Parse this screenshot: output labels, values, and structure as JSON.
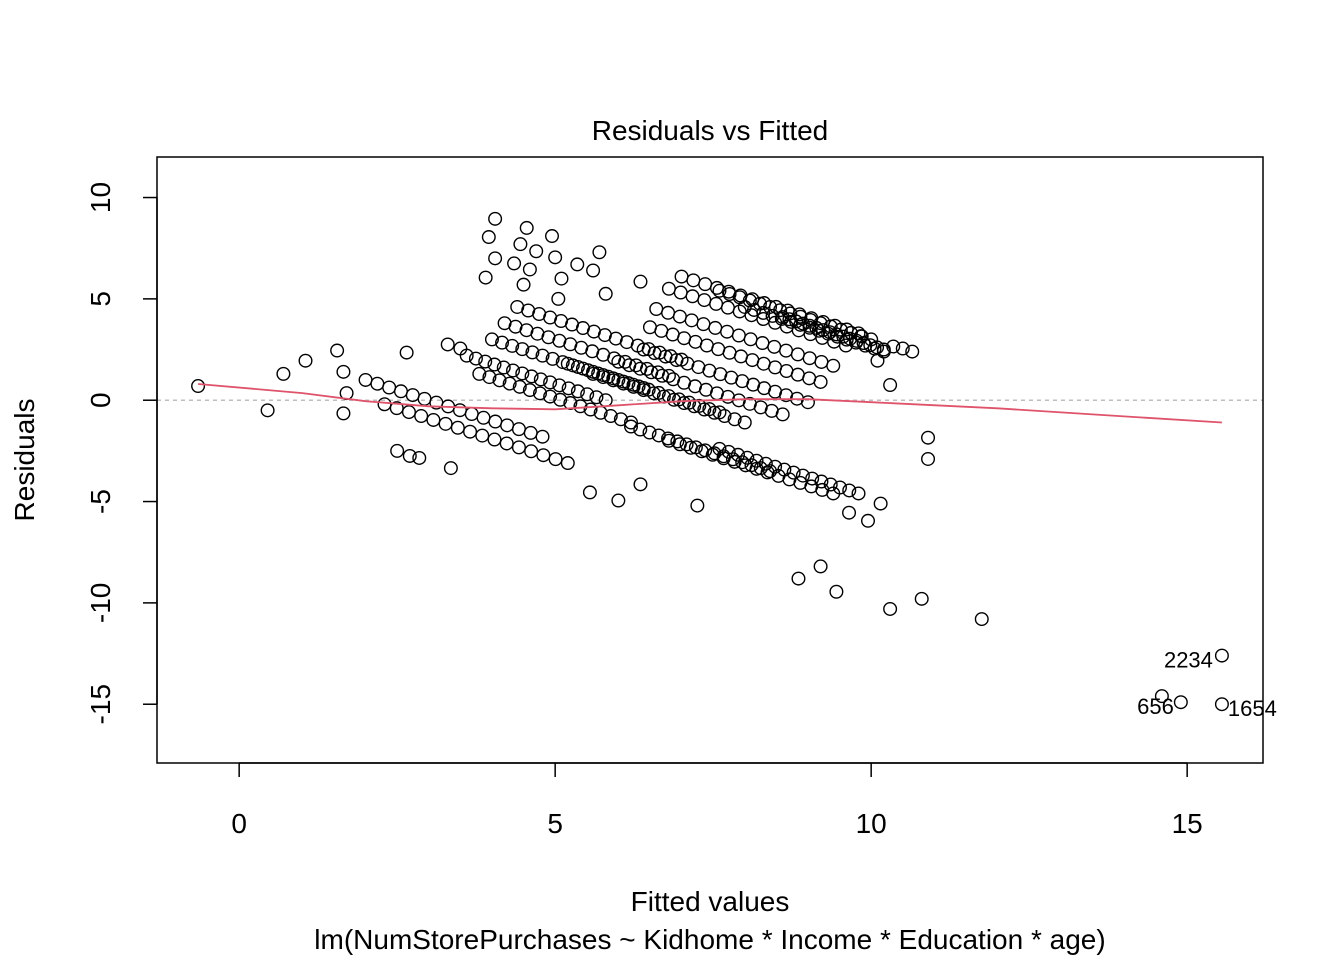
{
  "chart_data": {
    "type": "scatter",
    "title": "Residuals vs Fitted",
    "xlabel": "Fitted values",
    "ylabel": "Residuals",
    "subtitle": "lm(NumStorePurchases ~ Kidhome * Income * Education * age)",
    "xlim": [
      -1.3,
      16.2
    ],
    "ylim": [
      -17.9,
      12.0
    ],
    "x_ticks": [
      0,
      5,
      10,
      15
    ],
    "x_tick_labels": [
      "0",
      "5",
      "10",
      "15"
    ],
    "y_ticks": [
      -15,
      -10,
      -5,
      0,
      5,
      10
    ],
    "y_tick_labels": [
      "-15",
      "-10",
      "-5",
      "0",
      "5",
      "10"
    ],
    "reference_line_y": 0,
    "colors": {
      "points": "#000000",
      "smooth": "#DF536B",
      "reference": "#BEBEBE"
    },
    "outlier_points": [
      {
        "x": -0.65,
        "y": 0.7
      },
      {
        "x": 0.45,
        "y": -0.5
      },
      {
        "x": 0.7,
        "y": 1.3
      },
      {
        "x": 1.05,
        "y": 1.95
      },
      {
        "x": 1.55,
        "y": 2.45
      },
      {
        "x": 1.65,
        "y": 1.4
      },
      {
        "x": 1.7,
        "y": 0.35
      },
      {
        "x": 1.65,
        "y": -0.65
      },
      {
        "x": 2.5,
        "y": -2.5
      },
      {
        "x": 2.7,
        "y": -2.75
      },
      {
        "x": 2.85,
        "y": -2.85
      },
      {
        "x": 3.35,
        "y": -3.35
      },
      {
        "x": 2.65,
        "y": 2.35
      },
      {
        "x": 3.3,
        "y": 2.75
      },
      {
        "x": 3.5,
        "y": 2.55
      },
      {
        "x": 4.05,
        "y": 8.95
      },
      {
        "x": 3.95,
        "y": 8.05
      },
      {
        "x": 4.05,
        "y": 7.0
      },
      {
        "x": 3.9,
        "y": 6.05
      },
      {
        "x": 4.45,
        "y": 7.7
      },
      {
        "x": 4.35,
        "y": 6.75
      },
      {
        "x": 4.55,
        "y": 8.5
      },
      {
        "x": 4.7,
        "y": 7.35
      },
      {
        "x": 4.6,
        "y": 6.45
      },
      {
        "x": 4.5,
        "y": 5.7
      },
      {
        "x": 4.95,
        "y": 8.1
      },
      {
        "x": 5.0,
        "y": 7.05
      },
      {
        "x": 5.1,
        "y": 6.0
      },
      {
        "x": 5.05,
        "y": 5.0
      },
      {
        "x": 5.35,
        "y": 6.7
      },
      {
        "x": 5.6,
        "y": 6.4
      },
      {
        "x": 5.7,
        "y": 7.3
      },
      {
        "x": 5.8,
        "y": 5.25
      },
      {
        "x": 6.35,
        "y": 5.85
      },
      {
        "x": 5.55,
        "y": -4.55
      },
      {
        "x": 6.0,
        "y": -4.95
      },
      {
        "x": 6.35,
        "y": -4.15
      },
      {
        "x": 7.25,
        "y": -5.2
      },
      {
        "x": 9.65,
        "y": -5.55
      },
      {
        "x": 9.95,
        "y": -5.95
      },
      {
        "x": 10.15,
        "y": -5.1
      },
      {
        "x": 10.9,
        "y": -1.85
      },
      {
        "x": 10.9,
        "y": -2.9
      },
      {
        "x": 10.3,
        "y": 0.75
      },
      {
        "x": 10.35,
        "y": 2.65
      },
      {
        "x": 10.5,
        "y": 2.55
      },
      {
        "x": 10.65,
        "y": 2.4
      },
      {
        "x": 9.85,
        "y": 3.15
      },
      {
        "x": 10.1,
        "y": 1.95
      },
      {
        "x": 8.85,
        "y": -8.8
      },
      {
        "x": 9.2,
        "y": -8.2
      },
      {
        "x": 9.45,
        "y": -9.45
      },
      {
        "x": 10.3,
        "y": -10.3
      },
      {
        "x": 10.8,
        "y": -9.8
      },
      {
        "x": 11.75,
        "y": -10.8
      },
      {
        "x": 14.6,
        "y": -14.6
      },
      {
        "x": 14.9,
        "y": -14.9
      },
      {
        "x": 15.55,
        "y": -12.6
      },
      {
        "x": 15.55,
        "y": -15.0
      }
    ],
    "diagonal_band_points_per_row": 16,
    "diagonal_bands": [
      {
        "x_start": 2.0,
        "x_end": 4.8,
        "residual_at_start": 1.0,
        "slope": -1.0
      },
      {
        "x_start": 2.3,
        "x_end": 5.2,
        "residual_at_start": -0.2,
        "slope": -1.0
      },
      {
        "x_start": 3.6,
        "x_end": 5.8,
        "residual_at_start": 2.2,
        "slope": -1.0
      },
      {
        "x_start": 3.8,
        "x_end": 6.2,
        "residual_at_start": 1.3,
        "slope": -1.0
      },
      {
        "x_start": 4.0,
        "x_end": 6.4,
        "residual_at_start": 3.0,
        "slope": -1.0
      },
      {
        "x_start": 4.2,
        "x_end": 6.8,
        "residual_at_start": 3.8,
        "slope": -1.0
      },
      {
        "x_start": 4.4,
        "x_end": 7.0,
        "residual_at_start": 4.6,
        "slope": -1.0
      },
      {
        "x_start": 5.2,
        "x_end": 7.6,
        "residual_at_start": 1.8,
        "slope": -1.0
      },
      {
        "x_start": 5.6,
        "x_end": 8.0,
        "residual_at_start": 1.3,
        "slope": -1.0
      },
      {
        "x_start": 6.0,
        "x_end": 8.6,
        "residual_at_start": 1.9,
        "slope": -1.0
      },
      {
        "x_start": 6.4,
        "x_end": 9.0,
        "residual_at_start": 2.5,
        "slope": -1.0
      },
      {
        "x_start": 6.5,
        "x_end": 9.2,
        "residual_at_start": 3.6,
        "slope": -1.0
      },
      {
        "x_start": 6.6,
        "x_end": 9.4,
        "residual_at_start": 4.5,
        "slope": -1.0
      },
      {
        "x_start": 6.8,
        "x_end": 9.6,
        "residual_at_start": 5.5,
        "slope": -1.0
      },
      {
        "x_start": 7.0,
        "x_end": 9.8,
        "residual_at_start": 6.1,
        "slope": -1.0
      },
      {
        "x_start": 7.6,
        "x_end": 10.0,
        "residual_at_start": 5.4,
        "slope": -1.0
      },
      {
        "x_start": 8.0,
        "x_end": 10.2,
        "residual_at_start": 4.6,
        "slope": -1.0
      },
      {
        "x_start": 8.6,
        "x_end": 10.2,
        "residual_at_start": 4.1,
        "slope": -1.0
      },
      {
        "x_start": 6.2,
        "x_end": 8.4,
        "residual_at_start": -1.3,
        "slope": -1.0
      },
      {
        "x_start": 6.8,
        "x_end": 9.4,
        "residual_at_start": -2.0,
        "slope": -1.0
      },
      {
        "x_start": 7.6,
        "x_end": 9.8,
        "residual_at_start": -2.4,
        "slope": -1.0
      }
    ],
    "smooth_line": [
      {
        "x": -0.65,
        "y": 0.8
      },
      {
        "x": 1.0,
        "y": 0.35
      },
      {
        "x": 2.0,
        "y": -0.05
      },
      {
        "x": 3.0,
        "y": -0.3
      },
      {
        "x": 4.0,
        "y": -0.4
      },
      {
        "x": 5.0,
        "y": -0.45
      },
      {
        "x": 6.0,
        "y": -0.25
      },
      {
        "x": 7.0,
        "y": -0.05
      },
      {
        "x": 8.0,
        "y": 0.05
      },
      {
        "x": 9.0,
        "y": 0.05
      },
      {
        "x": 10.0,
        "y": -0.1
      },
      {
        "x": 12.0,
        "y": -0.4
      },
      {
        "x": 14.0,
        "y": -0.8
      },
      {
        "x": 15.55,
        "y": -1.1
      }
    ],
    "point_labels": [
      {
        "text": "2234",
        "x": 15.55,
        "y": -12.6,
        "dx": -9
      },
      {
        "text": "656",
        "x": 14.9,
        "y": -14.9,
        "dx": -7
      },
      {
        "text": "1654",
        "x": 15.55,
        "y": -15.0,
        "dx": 6
      }
    ]
  }
}
